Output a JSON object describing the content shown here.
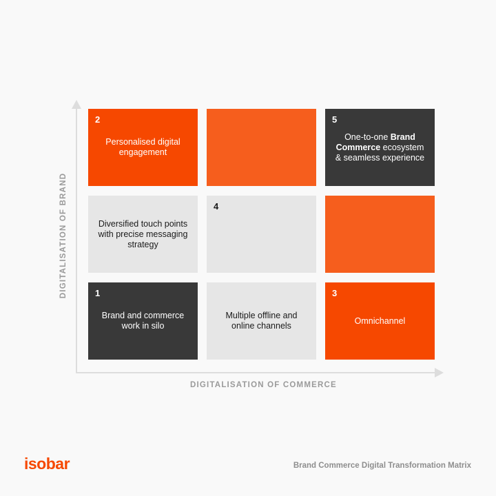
{
  "axes": {
    "y_label": "DIGITALISATION OF BRAND",
    "x_label": "DIGITALISATION OF COMMERCE"
  },
  "cells": [
    {
      "number": "2",
      "lines": [
        "Personalised digital",
        "engagement"
      ]
    },
    {
      "number": "",
      "lines": []
    },
    {
      "number": "5",
      "lines": [
        "One-to-one Brand",
        "Commerce ecosystem",
        "& seamless experience"
      ]
    },
    {
      "number": "",
      "lines": [
        "Diversified touch points",
        "with precise messaging",
        "strategy"
      ]
    },
    {
      "number": "4",
      "lines": []
    },
    {
      "number": "",
      "lines": []
    },
    {
      "number": "1",
      "lines": [
        "Brand and commerce",
        "work in silo"
      ]
    },
    {
      "number": "",
      "lines": [
        "Multiple offline and",
        "online channels"
      ]
    },
    {
      "number": "3",
      "lines": [
        "Omnichannel"
      ]
    }
  ],
  "colors": {
    "orange": "#f64800",
    "orange_light": "#f65e1d",
    "dark": "#393939",
    "light": "#e6e6e6",
    "axis": "#dddddd"
  },
  "footer": {
    "logo": "isobar",
    "caption": "Brand Commerce Digital Transformation Matrix"
  }
}
